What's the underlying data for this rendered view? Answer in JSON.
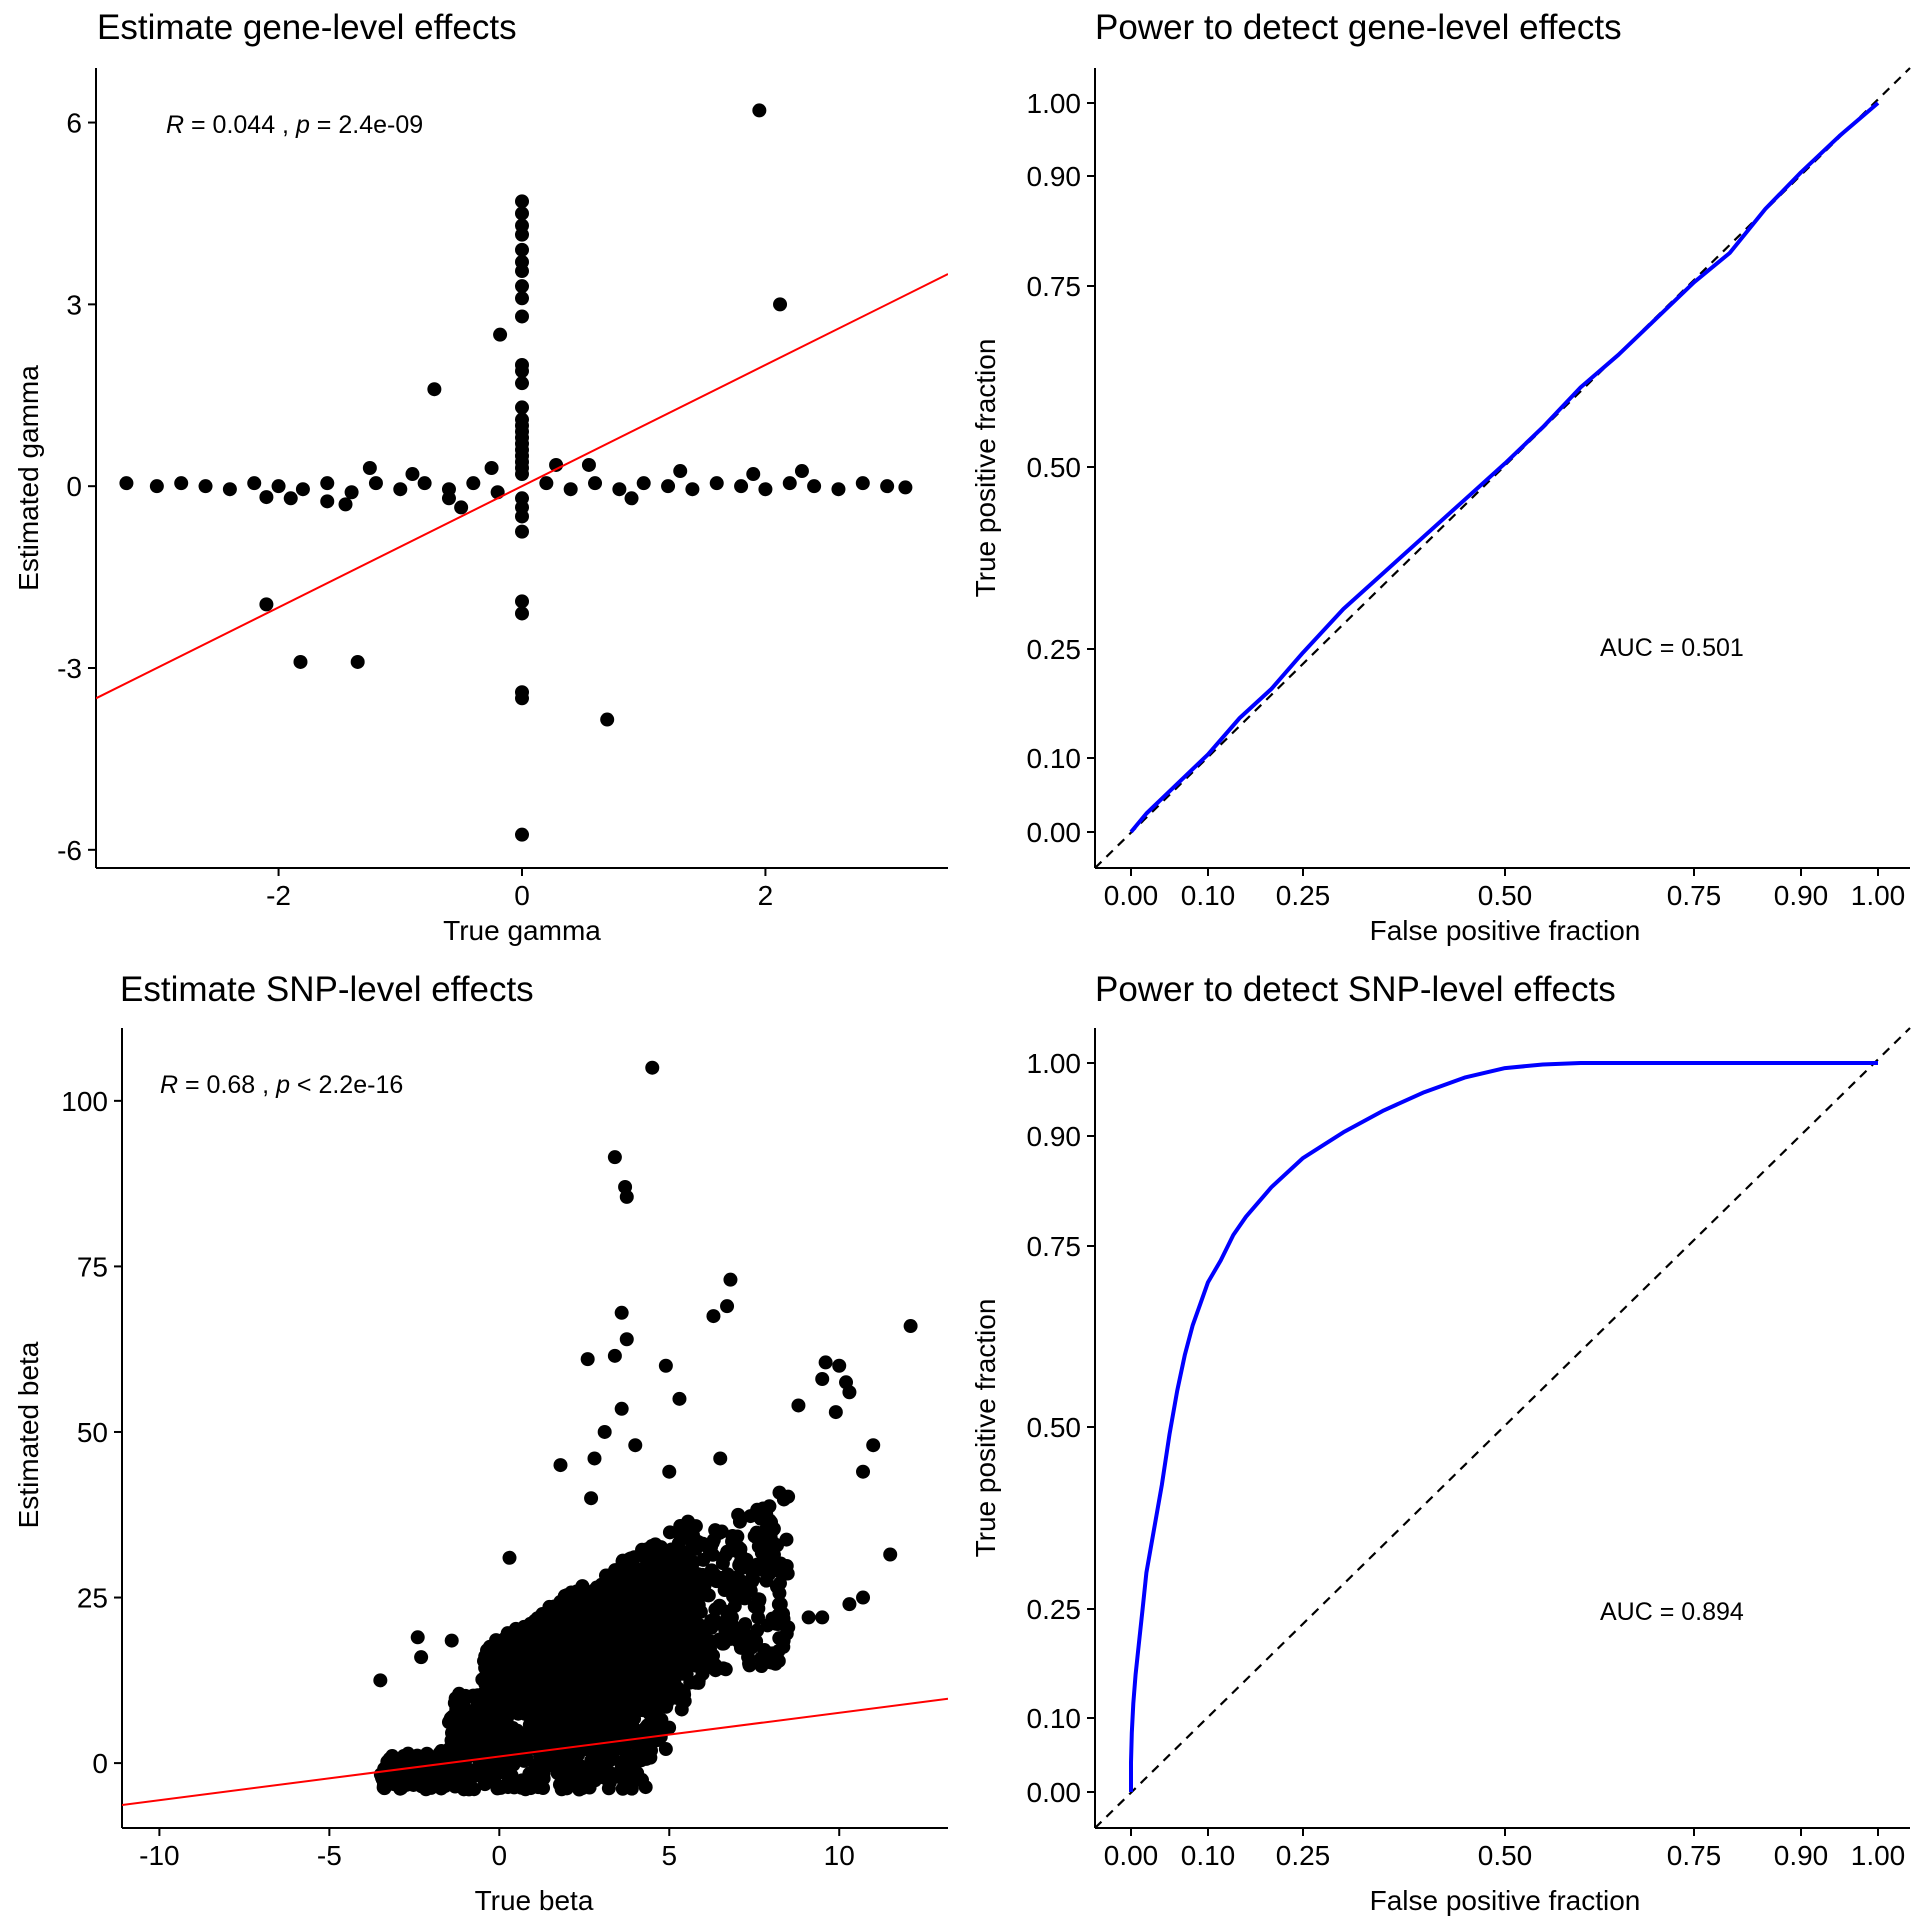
{
  "chart_data": [
    {
      "type": "scatter",
      "title": "Estimate gene-level effects",
      "xlabel": "True gamma",
      "ylabel": "Estimated gamma",
      "xlim": [
        -3.5,
        3.5
      ],
      "ylim": [
        -6.3,
        6.9
      ],
      "xticks": [
        -2,
        0,
        2
      ],
      "yticks": [
        -6,
        -3,
        0,
        3,
        6
      ],
      "grid": false,
      "annotation": {
        "r_sym": "R",
        "r_text": " = 0.044 , ",
        "p_sym": "p",
        "p_text": " = 2.4e-09"
      },
      "fit_line": {
        "color": "#ff0000",
        "intercept": 0.0,
        "slope": 1.0
      },
      "point_color": "#000000",
      "points": [
        [
          -3.25,
          0.05
        ],
        [
          -3.0,
          0.0
        ],
        [
          -2.8,
          0.05
        ],
        [
          -2.6,
          0.0
        ],
        [
          -2.4,
          -0.05
        ],
        [
          -2.2,
          0.05
        ],
        [
          -2.0,
          0.0
        ],
        [
          -1.8,
          -0.05
        ],
        [
          -1.6,
          0.05
        ],
        [
          -1.4,
          -0.1
        ],
        [
          -1.2,
          0.05
        ],
        [
          -1.0,
          -0.05
        ],
        [
          -0.8,
          0.05
        ],
        [
          -0.6,
          -0.05
        ],
        [
          -0.4,
          0.05
        ],
        [
          -0.2,
          -0.1
        ],
        [
          0.2,
          0.05
        ],
        [
          0.4,
          -0.05
        ],
        [
          0.6,
          0.05
        ],
        [
          0.8,
          -0.05
        ],
        [
          1.0,
          0.05
        ],
        [
          1.2,
          0.0
        ],
        [
          1.4,
          -0.05
        ],
        [
          1.6,
          0.05
        ],
        [
          1.8,
          0.0
        ],
        [
          2.0,
          -0.05
        ],
        [
          2.2,
          0.05
        ],
        [
          2.4,
          0.0
        ],
        [
          2.6,
          -0.05
        ],
        [
          2.8,
          0.05
        ],
        [
          3.0,
          0.0
        ],
        [
          3.15,
          -0.02
        ],
        [
          -2.1,
          -0.18
        ],
        [
          -1.6,
          -0.25
        ],
        [
          -0.6,
          -0.2
        ],
        [
          -1.25,
          0.3
        ],
        [
          0.55,
          0.35
        ],
        [
          -0.25,
          0.3
        ],
        [
          2.3,
          0.25
        ],
        [
          -0.5,
          -0.35
        ],
        [
          -1.45,
          -0.3
        ],
        [
          -1.9,
          -0.2
        ],
        [
          1.9,
          0.2
        ],
        [
          1.3,
          0.25
        ],
        [
          -0.9,
          0.2
        ],
        [
          0.9,
          -0.2
        ],
        [
          0.0,
          4.7
        ],
        [
          0.0,
          4.5
        ],
        [
          0.0,
          4.3
        ],
        [
          0.0,
          4.15
        ],
        [
          0.0,
          3.9
        ],
        [
          0.0,
          3.7
        ],
        [
          0.0,
          3.55
        ],
        [
          0.0,
          3.3
        ],
        [
          0.0,
          3.1
        ],
        [
          0.0,
          2.8
        ],
        [
          0.0,
          2.0
        ],
        [
          0.0,
          1.9
        ],
        [
          0.0,
          1.7
        ],
        [
          0.0,
          1.3
        ],
        [
          0.0,
          1.1
        ],
        [
          0.0,
          1.0
        ],
        [
          0.0,
          0.9
        ],
        [
          0.0,
          0.8
        ],
        [
          0.0,
          0.7
        ],
        [
          0.0,
          0.6
        ],
        [
          0.0,
          0.5
        ],
        [
          0.0,
          0.4
        ],
        [
          0.0,
          0.3
        ],
        [
          0.0,
          0.2
        ],
        [
          0.0,
          -0.2
        ],
        [
          0.0,
          -0.35
        ],
        [
          0.0,
          -0.5
        ],
        [
          0.0,
          -0.75
        ],
        [
          0.0,
          -1.9
        ],
        [
          0.0,
          -2.1
        ],
        [
          0.0,
          -3.4
        ],
        [
          0.0,
          -3.5
        ],
        [
          0.0,
          -5.75
        ],
        [
          1.95,
          6.2
        ],
        [
          2.12,
          3.0
        ],
        [
          -0.18,
          2.5
        ],
        [
          -0.72,
          1.6
        ],
        [
          -2.1,
          -1.95
        ],
        [
          -1.82,
          -2.9
        ],
        [
          -1.35,
          -2.9
        ],
        [
          0.7,
          -3.85
        ],
        [
          0.28,
          0.35
        ]
      ]
    },
    {
      "type": "line",
      "title": "Power to detect gene-level effects",
      "xlabel": "False positive fraction",
      "ylabel": "True positive fraction",
      "xticks": [
        "0.00",
        "0.10",
        "0.25",
        "0.50",
        "0.75",
        "0.90",
        "1.00"
      ],
      "yticks": [
        "0.00",
        "0.10",
        "0.25",
        "0.50",
        "0.75",
        "0.90",
        "1.00"
      ],
      "axis_scale": "probit-stretched",
      "grid": false,
      "auc_label": "AUC = 0.501",
      "diagonal": {
        "style": "dashed",
        "color": "#000000"
      },
      "series": [
        {
          "color": "#0000ff",
          "x": [
            0.0,
            0.02,
            0.05,
            0.1,
            0.15,
            0.2,
            0.25,
            0.3,
            0.35,
            0.4,
            0.45,
            0.5,
            0.55,
            0.6,
            0.65,
            0.7,
            0.75,
            0.8,
            0.85,
            0.9,
            0.95,
            1.0
          ],
          "y": [
            0.0,
            0.025,
            0.055,
            0.105,
            0.155,
            0.195,
            0.245,
            0.305,
            0.355,
            0.405,
            0.455,
            0.505,
            0.555,
            0.61,
            0.655,
            0.705,
            0.755,
            0.795,
            0.855,
            0.905,
            0.955,
            1.0
          ]
        }
      ]
    },
    {
      "type": "scatter",
      "title": "Estimate SNP-level effects",
      "xlabel": "True beta",
      "ylabel": "Estimated beta",
      "xlim": [
        -11.1,
        13.2
      ],
      "ylim": [
        -9.8,
        111
      ],
      "xticks": [
        -10,
        -5,
        0,
        5,
        10
      ],
      "yticks": [
        0,
        25,
        50,
        75,
        100
      ],
      "grid": false,
      "annotation": {
        "r_sym": "R",
        "r_text": " = 0.68 , ",
        "p_sym": "p",
        "p_text": " < 2.2e-16"
      },
      "fit_line": {
        "color": "#ff0000",
        "intercept": 1.0,
        "slope": 0.66
      },
      "point_color": "#000000",
      "cloud": [
        {
          "x0": -3.5,
          "x1": 4.5,
          "y0": -4,
          "y1": 8
        },
        {
          "x0": -1.5,
          "x1": 5.0,
          "y0": 2,
          "y1": 22
        },
        {
          "x0": -0.5,
          "x1": 5.5,
          "y0": 8,
          "y1": 33
        },
        {
          "x0": 1.0,
          "x1": 6.0,
          "y0": 12,
          "y1": 38
        },
        {
          "x0": 3.0,
          "x1": 8.5,
          "y0": 14,
          "y1": 42
        }
      ],
      "outliers": [
        [
          4.5,
          105
        ],
        [
          3.4,
          91.5
        ],
        [
          3.7,
          87
        ],
        [
          3.75,
          85.5
        ],
        [
          6.8,
          73
        ],
        [
          6.7,
          69
        ],
        [
          6.3,
          67.5
        ],
        [
          3.6,
          68
        ],
        [
          3.75,
          64
        ],
        [
          12.1,
          66
        ],
        [
          2.6,
          61
        ],
        [
          3.4,
          61.5
        ],
        [
          4.9,
          60
        ],
        [
          9.6,
          60.5
        ],
        [
          10.0,
          60
        ],
        [
          10.2,
          57.5
        ],
        [
          10.3,
          56
        ],
        [
          9.5,
          58
        ],
        [
          8.8,
          54
        ],
        [
          9.9,
          53
        ],
        [
          3.6,
          53.5
        ],
        [
          11.0,
          48
        ],
        [
          10.7,
          44
        ],
        [
          11.5,
          31.5
        ],
        [
          8.2,
          21
        ],
        [
          8.5,
          20.5
        ],
        [
          9.1,
          22
        ],
        [
          9.5,
          22
        ],
        [
          10.7,
          25
        ],
        [
          10.3,
          24
        ],
        [
          -3.5,
          12.5
        ],
        [
          -2.4,
          19
        ],
        [
          -2.3,
          16
        ],
        [
          -1.4,
          18.5
        ],
        [
          2.7,
          40
        ],
        [
          1.8,
          45
        ],
        [
          0.3,
          31
        ],
        [
          5.0,
          44
        ],
        [
          4.0,
          48
        ],
        [
          3.1,
          50
        ],
        [
          2.8,
          46
        ],
        [
          5.3,
          55
        ],
        [
          6.5,
          46
        ]
      ]
    },
    {
      "type": "line",
      "title": "Power to detect SNP-level effects",
      "xlabel": "False positive fraction",
      "ylabel": "True positive fraction",
      "xticks": [
        "0.00",
        "0.10",
        "0.25",
        "0.50",
        "0.75",
        "0.90",
        "1.00"
      ],
      "yticks": [
        "0.00",
        "0.10",
        "0.25",
        "0.50",
        "0.75",
        "0.90",
        "1.00"
      ],
      "axis_scale": "probit-stretched",
      "grid": false,
      "auc_label": "AUC = 0.894",
      "diagonal": {
        "style": "dashed",
        "color": "#000000"
      },
      "series": [
        {
          "color": "#0000ff",
          "x": [
            0.0,
            0.0,
            0.001,
            0.003,
            0.006,
            0.01,
            0.015,
            0.02,
            0.03,
            0.04,
            0.05,
            0.06,
            0.07,
            0.08,
            0.09,
            0.1,
            0.12,
            0.14,
            0.16,
            0.2,
            0.25,
            0.3,
            0.35,
            0.4,
            0.45,
            0.5,
            0.55,
            0.6,
            0.7,
            0.8,
            0.9,
            1.0
          ],
          "y": [
            0.0,
            0.04,
            0.08,
            0.12,
            0.16,
            0.2,
            0.25,
            0.3,
            0.36,
            0.42,
            0.49,
            0.55,
            0.6,
            0.64,
            0.67,
            0.7,
            0.73,
            0.765,
            0.79,
            0.83,
            0.87,
            0.905,
            0.935,
            0.96,
            0.98,
            0.993,
            0.998,
            1.0,
            1.0,
            1.0,
            1.0,
            1.0
          ]
        }
      ]
    }
  ]
}
